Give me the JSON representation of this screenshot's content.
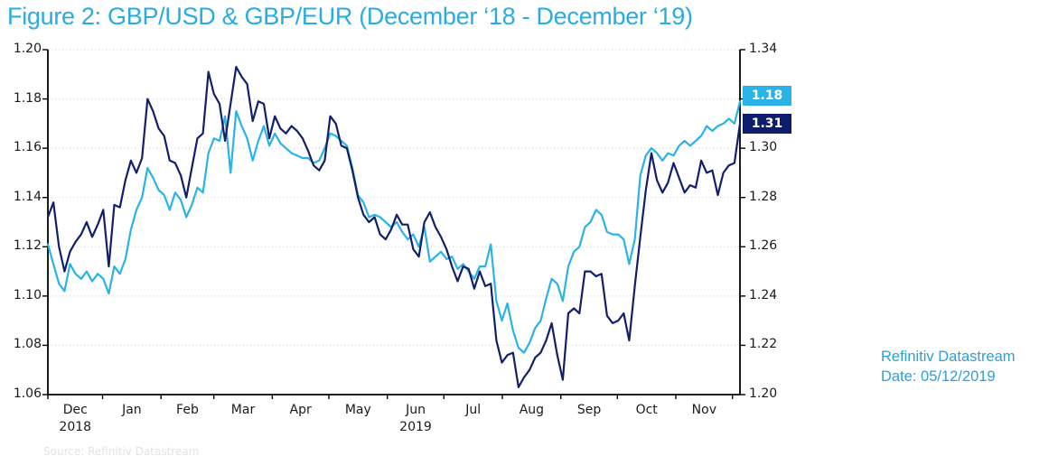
{
  "title": {
    "text": "Figure 2: GBP/USD & GBP/EUR (December ‘18 - December ‘19)",
    "color": "#29ACE3"
  },
  "annotation": {
    "line1": "Refinitiv Datastream",
    "line2": "Date: 05/12/2019",
    "color": "#2AA0DC"
  },
  "source_note": {
    "text": "Source: Refinitiv Datastream",
    "color": "#e3e3e3"
  },
  "chart_data": {
    "type": "line",
    "title": "Figure 2: GBP/USD & GBP/EUR (December ‘18 - December ‘19)",
    "x_range": {
      "start": "December 2018",
      "end": "5 December 2019",
      "total_days": 367
    },
    "x_axis": {
      "month_labels": [
        "Dec",
        "Jan",
        "Feb",
        "Mar",
        "Apr",
        "May",
        "Jun",
        "Jul",
        "Aug",
        "Sep",
        "Oct",
        "Nov"
      ],
      "month_boundaries_days": [
        0,
        29,
        60,
        88,
        119,
        149,
        180,
        210,
        241,
        272,
        302,
        333,
        363
      ],
      "year_labels": [
        {
          "text": "2018",
          "month_index": 0
        },
        {
          "text": "2019",
          "month_index": 6
        }
      ]
    },
    "left_axis": {
      "pair": "GBP/EUR",
      "min": 1.06,
      "max": 1.2,
      "tick_step": 0.02,
      "tick_labels": [
        "1.20",
        "1.18",
        "1.16",
        "1.14",
        "1.12",
        "1.10",
        "1.08",
        "1.06"
      ]
    },
    "right_axis": {
      "pair": "GBP/USD",
      "min": 1.2,
      "max": 1.34,
      "tick_step": 0.02,
      "tick_labels": [
        "1.34",
        "1.32",
        "1.30",
        "1.28",
        "1.26",
        "1.24",
        "1.22",
        "1.20"
      ]
    },
    "grid": {
      "horizontal": true,
      "style": "dotted",
      "color": "#cccccc"
    },
    "axis_color": "#000000",
    "legend": "none",
    "sampling_note": "values equally spaced ~3-day intervals from Dec 2018 to 5 Dec 2019",
    "series": [
      {
        "name": "GBP/USD",
        "axis": "right",
        "color": "#121F6B",
        "badge_color": "#0D1C6B",
        "end_label": "1.31",
        "values": [
          1.272,
          1.278,
          1.26,
          1.25,
          1.258,
          1.262,
          1.265,
          1.27,
          1.264,
          1.269,
          1.275,
          1.252,
          1.277,
          1.276,
          1.287,
          1.295,
          1.29,
          1.296,
          1.32,
          1.315,
          1.308,
          1.305,
          1.295,
          1.294,
          1.289,
          1.28,
          1.292,
          1.304,
          1.306,
          1.331,
          1.322,
          1.318,
          1.303,
          1.318,
          1.333,
          1.329,
          1.326,
          1.311,
          1.319,
          1.318,
          1.304,
          1.313,
          1.308,
          1.306,
          1.309,
          1.307,
          1.304,
          1.299,
          1.293,
          1.291,
          1.295,
          1.313,
          1.31,
          1.301,
          1.3,
          1.291,
          1.28,
          1.273,
          1.27,
          1.272,
          1.265,
          1.263,
          1.267,
          1.273,
          1.269,
          1.269,
          1.259,
          1.256,
          1.27,
          1.274,
          1.268,
          1.264,
          1.259,
          1.252,
          1.246,
          1.252,
          1.251,
          1.243,
          1.25,
          1.244,
          1.245,
          1.222,
          1.213,
          1.216,
          1.217,
          1.203,
          1.207,
          1.21,
          1.215,
          1.217,
          1.222,
          1.229,
          1.216,
          1.206,
          1.233,
          1.235,
          1.233,
          1.25,
          1.25,
          1.248,
          1.249,
          1.232,
          1.229,
          1.23,
          1.233,
          1.222,
          1.244,
          1.264,
          1.283,
          1.298,
          1.287,
          1.282,
          1.286,
          1.294,
          1.288,
          1.282,
          1.285,
          1.284,
          1.295,
          1.29,
          1.291,
          1.281,
          1.29,
          1.293,
          1.294,
          1.31
        ]
      },
      {
        "name": "GBP/EUR",
        "axis": "left",
        "color": "#29B3E6",
        "badge_color": "#29B3E6",
        "end_label": "1.18",
        "values": [
          1.121,
          1.113,
          1.105,
          1.102,
          1.113,
          1.109,
          1.107,
          1.11,
          1.106,
          1.109,
          1.107,
          1.101,
          1.112,
          1.109,
          1.115,
          1.127,
          1.135,
          1.14,
          1.152,
          1.148,
          1.143,
          1.141,
          1.135,
          1.142,
          1.139,
          1.132,
          1.137,
          1.144,
          1.142,
          1.158,
          1.164,
          1.163,
          1.173,
          1.15,
          1.175,
          1.169,
          1.164,
          1.155,
          1.163,
          1.169,
          1.161,
          1.166,
          1.162,
          1.16,
          1.158,
          1.157,
          1.156,
          1.156,
          1.154,
          1.155,
          1.16,
          1.166,
          1.165,
          1.163,
          1.161,
          1.152,
          1.141,
          1.138,
          1.132,
          1.133,
          1.132,
          1.13,
          1.128,
          1.13,
          1.126,
          1.123,
          1.125,
          1.12,
          1.128,
          1.114,
          1.116,
          1.118,
          1.115,
          1.116,
          1.111,
          1.113,
          1.11,
          1.107,
          1.112,
          1.112,
          1.121,
          1.098,
          1.09,
          1.097,
          1.086,
          1.079,
          1.077,
          1.081,
          1.087,
          1.09,
          1.099,
          1.107,
          1.105,
          1.098,
          1.112,
          1.118,
          1.12,
          1.128,
          1.13,
          1.135,
          1.133,
          1.126,
          1.125,
          1.125,
          1.123,
          1.113,
          1.123,
          1.149,
          1.157,
          1.16,
          1.158,
          1.155,
          1.158,
          1.157,
          1.161,
          1.163,
          1.161,
          1.163,
          1.165,
          1.169,
          1.167,
          1.169,
          1.17,
          1.172,
          1.17,
          1.179
        ]
      }
    ]
  }
}
